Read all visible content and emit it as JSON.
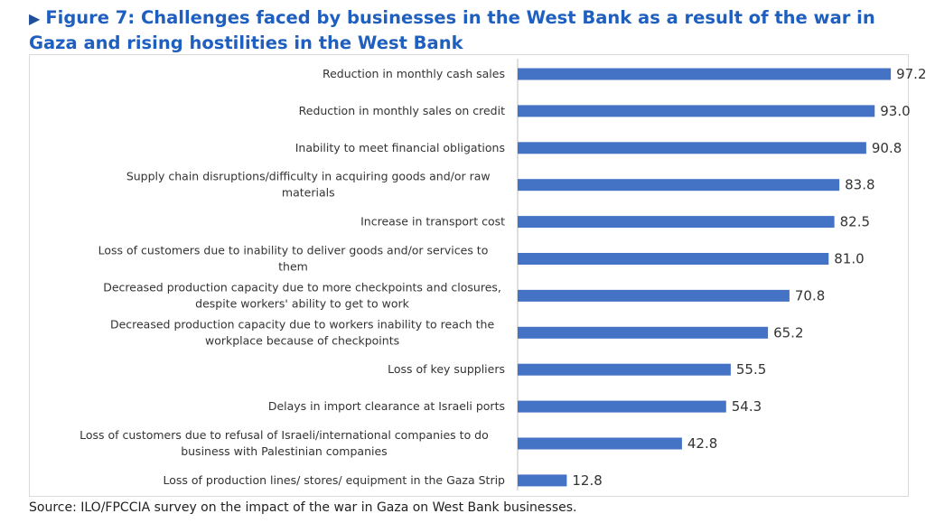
{
  "figure": {
    "marker": "▶",
    "title": "Figure 7: Challenges faced by businesses in the West Bank as a result of the war in Gaza and rising hostilities in the West Bank",
    "source": "Source: ILO/FPCCIA survey on the impact of the war in Gaza on West Bank businesses."
  },
  "chart_data": {
    "type": "bar",
    "orientation": "horizontal",
    "categories": [
      "Reduction in monthly cash sales",
      "Reduction in monthly sales on credit",
      "Inability to meet financial obligations",
      "Supply chain disruptions/difficulty in acquiring goods and/or raw materials",
      "Increase in transport cost",
      "Loss of customers due to inability to deliver goods and/or services to them",
      "Decreased production capacity due to more checkpoints and closures, despite workers' ability to get to work",
      "Decreased production capacity due to workers inability to reach the workplace because of checkpoints",
      "Loss of key suppliers",
      "Delays in import clearance at Israeli ports",
      "Loss of customers due to refusal of Israeli/international companies to do business with Palestinian companies",
      "Loss of production lines/ stores/ equipment in the Gaza Strip"
    ],
    "category_lines": [
      [
        "Reduction in monthly cash sales"
      ],
      [
        "Reduction in monthly sales on credit"
      ],
      [
        "Inability to meet financial obligations"
      ],
      [
        "Supply chain disruptions/difficulty in acquiring goods and/or raw",
        "materials"
      ],
      [
        "Increase in transport cost"
      ],
      [
        "Loss of customers due to inability to deliver goods and/or services to",
        "them"
      ],
      [
        "Decreased production capacity due to more checkpoints and closures,",
        "despite workers' ability to get to work"
      ],
      [
        "Decreased production capacity due to workers inability to reach the",
        "workplace because of checkpoints"
      ],
      [
        "Loss of key suppliers"
      ],
      [
        "Delays in import clearance at Israeli ports"
      ],
      [
        "Loss of customers due to refusal of Israeli/international companies to do",
        "business with Palestinian companies"
      ],
      [
        "Loss of production lines/ stores/ equipment in the Gaza Strip"
      ]
    ],
    "values": [
      97.2,
      93.0,
      90.8,
      83.8,
      82.5,
      81.0,
      70.8,
      65.2,
      55.5,
      54.3,
      42.8,
      12.8
    ],
    "data_labels": [
      "97.2",
      "93.0",
      "90.8",
      "83.8",
      "82.5",
      "81.0",
      "70.8",
      "65.2",
      "55.5",
      "54.3",
      "42.8",
      "12.8"
    ],
    "xlim": [
      0,
      100
    ],
    "grid": false,
    "legend": "none",
    "bar_color": "#4472c4"
  }
}
